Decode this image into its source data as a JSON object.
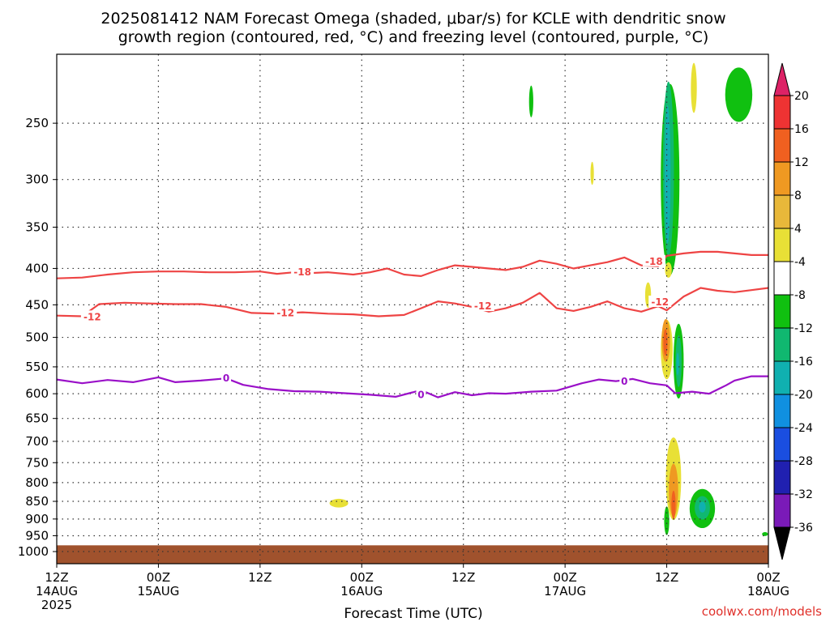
{
  "title": {
    "line1": "2025081412 NAM Forecast Omega (shaded, μbar/s) for KCLE with dendritic snow",
    "line2": "growth region (contoured, red, °C) and freezing level (contoured, purple, °C)"
  },
  "credit": "coolwx.com/models",
  "chart_data": {
    "type": "contour-time-height",
    "xlabel": "Forecast Time (UTC)",
    "x_ticks": [
      {
        "hour": 0,
        "line1": "12Z",
        "line2": "14AUG",
        "line3": "2025"
      },
      {
        "hour": 12,
        "line1": "00Z",
        "line2": "15AUG",
        "line3": ""
      },
      {
        "hour": 24,
        "line1": "12Z",
        "line2": "",
        "line3": ""
      },
      {
        "hour": 36,
        "line1": "00Z",
        "line2": "16AUG",
        "line3": ""
      },
      {
        "hour": 48,
        "line1": "12Z",
        "line2": "",
        "line3": ""
      },
      {
        "hour": 60,
        "line1": "00Z",
        "line2": "17AUG",
        "line3": ""
      },
      {
        "hour": 72,
        "line1": "12Z",
        "line2": "",
        "line3": ""
      },
      {
        "hour": 84,
        "line1": "00Z",
        "line2": "18AUG",
        "line3": ""
      }
    ],
    "xlim": [
      0,
      84
    ],
    "y_ticks": [
      {
        "p": 250,
        "label": "250"
      },
      {
        "p": 300,
        "label": "300"
      },
      {
        "p": 350,
        "label": "350"
      },
      {
        "p": 400,
        "label": "400"
      },
      {
        "p": 450,
        "label": "450"
      },
      {
        "p": 500,
        "label": "500"
      },
      {
        "p": 550,
        "label": "550"
      },
      {
        "p": 600,
        "label": "600"
      },
      {
        "p": 650,
        "label": "650"
      },
      {
        "p": 700,
        "label": "700"
      },
      {
        "p": 750,
        "label": "750"
      },
      {
        "p": 800,
        "label": "800"
      },
      {
        "p": 850,
        "label": "850"
      },
      {
        "p": 900,
        "label": "900"
      },
      {
        "p": 950,
        "label": "950"
      },
      {
        "p": 1000,
        "label": "1000"
      }
    ],
    "ylim": [
      200,
      1040
    ],
    "y_scale": "log",
    "grid": true,
    "ground": {
      "color": "#a0522d",
      "p_top": 980
    },
    "colorbar": {
      "labels": [
        "20",
        "16",
        "12",
        "8",
        "4",
        "-4",
        "-8",
        "-12",
        "-16",
        "-20",
        "-24",
        "-28",
        "-32",
        "-36"
      ],
      "colors": [
        "#dd2266",
        "#ee3333",
        "#f06020",
        "#ef9922",
        "#e8b83a",
        "#e8e036",
        "#ffffff",
        "#10c010",
        "#10b870",
        "#10b0b0",
        "#1090e0",
        "#1a4ee0",
        "#2020b0",
        "#7a1ab8",
        "#a010b0",
        "#a0a0a0",
        "#000000"
      ]
    },
    "contours": [
      {
        "name": "-18",
        "color": "#ee4444",
        "x": [
          0,
          3,
          6,
          9,
          12,
          15,
          18,
          21,
          24,
          26,
          28,
          30,
          32,
          35,
          37,
          39,
          41,
          43,
          45,
          47,
          49,
          51,
          53,
          55,
          57,
          59,
          61,
          63,
          65,
          67,
          69,
          71,
          72,
          74,
          76,
          78,
          80,
          82,
          84
        ],
        "y": [
          413,
          412,
          408,
          405,
          404,
          404,
          405,
          405,
          404,
          407,
          405,
          406,
          405,
          408,
          405,
          400,
          408,
          410,
          402,
          396,
          398,
          400,
          402,
          398,
          390,
          394,
          400,
          396,
          392,
          386,
          396,
          397,
          384,
          381,
          379,
          379,
          381,
          383,
          383
        ]
      },
      {
        "name": "-12",
        "color": "#ee4444",
        "x": [
          0,
          3,
          5,
          8,
          11,
          14,
          17,
          20,
          23,
          26,
          29,
          32,
          35,
          38,
          41,
          43,
          45,
          47,
          49,
          51,
          53,
          55,
          57,
          59,
          61,
          63,
          65,
          67,
          69,
          71,
          72,
          74,
          76,
          78,
          80,
          82,
          84
        ],
        "y": [
          466,
          467,
          449,
          447,
          448,
          449,
          449,
          453,
          462,
          463,
          461,
          463,
          464,
          467,
          465,
          455,
          445,
          448,
          453,
          460,
          455,
          447,
          433,
          455,
          459,
          453,
          445,
          455,
          460,
          452,
          458,
          438,
          426,
          430,
          432,
          429,
          426
        ]
      },
      {
        "name": "0",
        "color": "#9a10c8",
        "x": [
          0,
          3,
          6,
          9,
          12,
          14,
          17,
          20,
          22,
          25,
          28,
          31,
          34,
          37,
          40,
          43,
          45,
          47,
          49,
          51,
          53,
          56,
          59,
          62,
          64,
          66,
          68,
          70,
          72,
          73,
          75,
          77,
          79,
          80,
          82,
          84
        ],
        "y": [
          573,
          580,
          574,
          578,
          569,
          578,
          575,
          571,
          583,
          591,
          595,
          596,
          599,
          602,
          606,
          593,
          607,
          597,
          603,
          599,
          600,
          596,
          594,
          580,
          573,
          576,
          572,
          580,
          584,
          599,
          596,
          600,
          584,
          575,
          567,
          567
        ]
      }
    ],
    "contour_labels": [
      {
        "contour": "-18",
        "x": 29,
        "p": 405,
        "text": "-18"
      },
      {
        "contour": "-18",
        "x": 70.5,
        "p": 391,
        "text": "-18"
      },
      {
        "contour": "-12",
        "x": 4.2,
        "p": 468,
        "text": "-12"
      },
      {
        "contour": "-12",
        "x": 27,
        "p": 462,
        "text": "-12"
      },
      {
        "contour": "-12",
        "x": 50.3,
        "p": 452,
        "text": "-12"
      },
      {
        "contour": "-12",
        "x": 71.2,
        "p": 446,
        "text": "-12"
      },
      {
        "contour": "0",
        "x": 20,
        "p": 571,
        "text": "0"
      },
      {
        "contour": "0",
        "x": 43,
        "p": 602,
        "text": "0"
      },
      {
        "contour": "0",
        "x": 67,
        "p": 577,
        "text": "0"
      }
    ],
    "omega_patches": [
      {
        "x": 72.4,
        "p": 300,
        "hw": 1.1,
        "hp": 90,
        "color": "#10c010"
      },
      {
        "x": 72.2,
        "p": 290,
        "hw": 0.65,
        "hp": 80,
        "color": "#10b870"
      },
      {
        "x": 72.1,
        "p": 295,
        "hw": 0.35,
        "hp": 65,
        "color": "#10b0b0"
      },
      {
        "x": 80.5,
        "p": 228,
        "hw": 1.6,
        "hp": 20,
        "color": "#10c010"
      },
      {
        "x": 56,
        "p": 233,
        "hw": 0.25,
        "hp": 12,
        "color": "#10c010"
      },
      {
        "x": 63.2,
        "p": 294,
        "hw": 0.2,
        "hp": 11,
        "color": "#e8e036"
      },
      {
        "x": 75.2,
        "p": 223,
        "hw": 0.35,
        "hp": 18,
        "color": "#e8e036"
      },
      {
        "x": 69.8,
        "p": 436,
        "hw": 0.35,
        "hp": 18,
        "color": "#e8e036"
      },
      {
        "x": 72.2,
        "p": 402,
        "hw": 0.4,
        "hp": 10,
        "color": "#e8e036"
      },
      {
        "x": 72.0,
        "p": 520,
        "hw": 0.7,
        "hp": 50,
        "color": "#e8e036"
      },
      {
        "x": 71.9,
        "p": 505,
        "hw": 0.5,
        "hp": 35,
        "color": "#ef9922"
      },
      {
        "x": 71.85,
        "p": 508,
        "hw": 0.25,
        "hp": 22,
        "color": "#f06020"
      },
      {
        "x": 73.4,
        "p": 540,
        "hw": 0.6,
        "hp": 65,
        "color": "#10c010"
      },
      {
        "x": 73.4,
        "p": 540,
        "hw": 0.35,
        "hp": 45,
        "color": "#10b870"
      },
      {
        "x": 73.3,
        "p": 545,
        "hw": 0.16,
        "hp": 20,
        "color": "#10b0b0"
      },
      {
        "x": 72.8,
        "p": 790,
        "hw": 0.9,
        "hp": 105,
        "color": "#e8e036"
      },
      {
        "x": 72.8,
        "p": 820,
        "hw": 0.55,
        "hp": 70,
        "color": "#ef9922"
      },
      {
        "x": 72.8,
        "p": 860,
        "hw": 0.25,
        "hp": 40,
        "color": "#f06020"
      },
      {
        "x": 72.0,
        "p": 905,
        "hw": 0.3,
        "hp": 42,
        "color": "#10c010"
      },
      {
        "x": 76.2,
        "p": 870,
        "hw": 1.5,
        "hp": 55,
        "color": "#10c010"
      },
      {
        "x": 76.2,
        "p": 868,
        "hw": 0.9,
        "hp": 33,
        "color": "#10b870"
      },
      {
        "x": 76.2,
        "p": 866,
        "hw": 0.4,
        "hp": 15,
        "color": "#10b0b0"
      },
      {
        "x": 33.3,
        "p": 855,
        "hw": 1.1,
        "hp": 12,
        "color": "#e8e036"
      },
      {
        "x": 83.6,
        "p": 945,
        "hw": 0.35,
        "hp": 6,
        "color": "#10c010"
      }
    ]
  }
}
